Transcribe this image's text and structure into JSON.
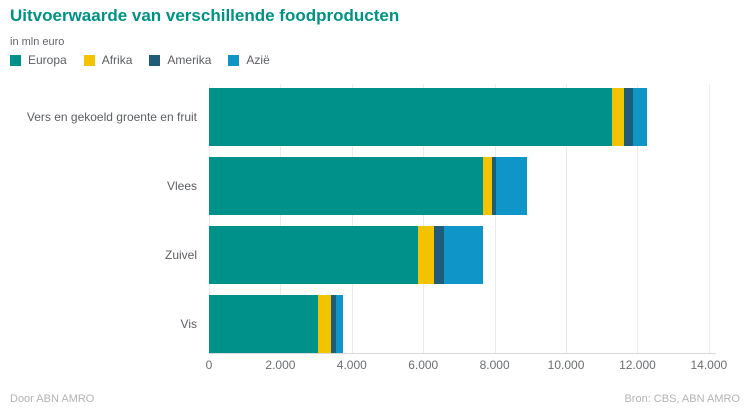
{
  "header": {
    "title": "Uitvoerwaarde van verschillende foodproducten",
    "subtitle": "in mln euro"
  },
  "colors": {
    "title": "#009286",
    "europa": "#00918a",
    "afrika": "#f2c400",
    "amerika": "#1e5c78",
    "azie": "#0f95c8",
    "gridline": "#ebebeb",
    "text_gray": "#5b5e62",
    "footer_gray": "#b3b3b3"
  },
  "chart_data": {
    "type": "bar",
    "orientation": "horizontal",
    "stacked": true,
    "title": "Uitvoerwaarde van verschillende foodproducten",
    "xlabel": "mln euro",
    "ylabel": "",
    "grid": true,
    "legend_position": "top",
    "xlim": [
      0,
      14200
    ],
    "categories": [
      "Vers en gekoeld groente en fruit",
      "Vlees",
      "Zuivel",
      "Vis"
    ],
    "series": [
      {
        "name": "Europa",
        "color": "#00918a",
        "values": [
          11300,
          7680,
          5860,
          3060
        ]
      },
      {
        "name": "Afrika",
        "color": "#f2c400",
        "values": [
          320,
          250,
          450,
          360
        ]
      },
      {
        "name": "Amerika",
        "color": "#1e5c78",
        "values": [
          260,
          110,
          280,
          140
        ]
      },
      {
        "name": "Azië",
        "color": "#0f95c8",
        "values": [
          390,
          860,
          1090,
          200
        ]
      }
    ],
    "totals": [
      12270,
      8900,
      7680,
      3760
    ],
    "ticks": {
      "values": [
        0,
        2000,
        4000,
        6000,
        8000,
        10000,
        12000,
        14000
      ],
      "labels": [
        "0",
        "2.000",
        "4.000",
        "6.000",
        "8.000",
        "10.000",
        "12.000",
        "14.000"
      ]
    }
  },
  "footer": {
    "left": "Door ABN AMRO",
    "right": "Bron: CBS, ABN AMRO"
  }
}
